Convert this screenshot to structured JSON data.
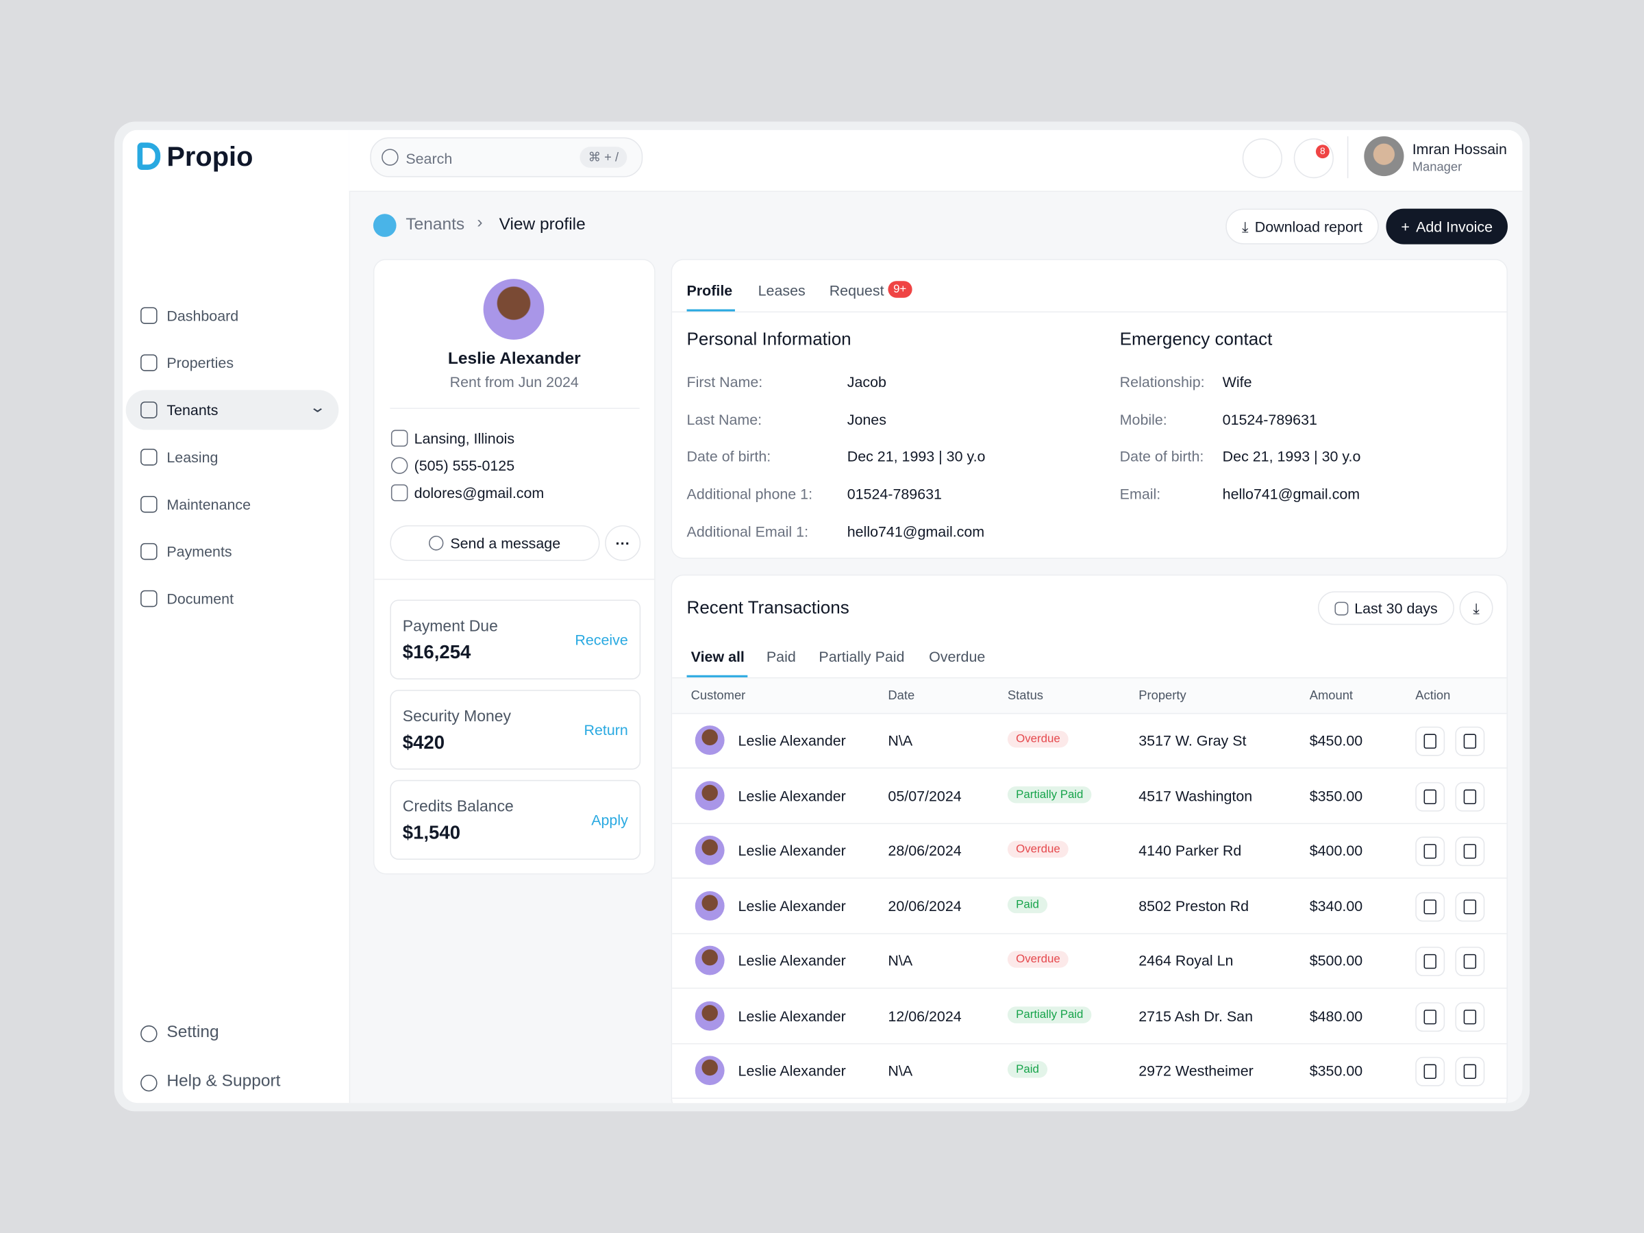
{
  "brand": "Propio",
  "search": {
    "placeholder": "Search",
    "shortcut": "⌘ + /"
  },
  "nav": [
    "Dashboard",
    "Properties",
    "Tenants",
    "Leasing",
    "Maintenance",
    "Payments",
    "Document"
  ],
  "nav_active": 2,
  "nav_footer": [
    "Setting",
    "Help & Support"
  ],
  "user": {
    "name": "Imran Hossain",
    "role": "Manager",
    "notifications": "8"
  },
  "breadcrumb": [
    "Tenants",
    "View profile"
  ],
  "actions": [
    "Download report",
    "Add Invoice"
  ],
  "profile": {
    "name": "Leslie Alexander",
    "since": "Rent from Jun 2024",
    "location": "Lansing, Illinois",
    "phone": "(505) 555-0125",
    "email": "dolores@gmail.com",
    "message": "Send a message"
  },
  "balances": [
    {
      "label": "Payment Due",
      "amount": "$16,254",
      "action": "Receive"
    },
    {
      "label": "Security Money",
      "amount": "$420",
      "action": "Return"
    },
    {
      "label": "Credits Balance",
      "amount": "$1,540",
      "action": "Apply"
    }
  ],
  "tabs": [
    "Profile",
    "Leases",
    "Request"
  ],
  "tab_badge": "9+",
  "personal": {
    "title": "Personal Information",
    "fields": [
      [
        "First Name:",
        "Jacob"
      ],
      [
        "Last Name:",
        "Jones"
      ],
      [
        "Date of birth:",
        "Dec 21, 1993 | 30 y.o"
      ],
      [
        "Additional phone 1:",
        "01524-789631"
      ],
      [
        "Additional Email 1:",
        "hello741@gmail.com"
      ]
    ]
  },
  "emergency": {
    "title": "Emergency contact",
    "fields": [
      [
        "Relationship:",
        "Wife"
      ],
      [
        "Mobile:",
        "01524-789631"
      ],
      [
        "Date of birth:",
        "Dec 21, 1993 | 30 y.o"
      ],
      [
        "Email:",
        "hello741@gmail.com"
      ]
    ]
  },
  "transactions": {
    "title": "Recent Transactions",
    "range": "Last 30 days",
    "filters": [
      "View all",
      "Paid",
      "Partially Paid",
      "Overdue"
    ],
    "columns": [
      "Customer",
      "Date",
      "Status",
      "Property",
      "Amount",
      "Action"
    ],
    "rows": [
      {
        "customer": "Leslie Alexander",
        "date": "N\\A",
        "status": "Overdue",
        "status_color": "#e5484d",
        "property": "3517 W. Gray St",
        "amount": "$450.00"
      },
      {
        "customer": "Leslie Alexander",
        "date": "05/07/2024",
        "status": "Partially Paid",
        "status_color": "#16a34a",
        "property": "4517 Washington",
        "amount": "$350.00"
      },
      {
        "customer": "Leslie Alexander",
        "date": "28/06/2024",
        "status": "Overdue",
        "status_color": "#e5484d",
        "property": "4140 Parker Rd",
        "amount": "$400.00"
      },
      {
        "customer": "Leslie Alexander",
        "date": "20/06/2024",
        "status": "Paid",
        "status_color": "#16a34a",
        "property": "8502 Preston Rd",
        "amount": "$340.00"
      },
      {
        "customer": "Leslie Alexander",
        "date": "N\\A",
        "status": "Overdue",
        "status_color": "#e5484d",
        "property": "2464 Royal Ln",
        "amount": "$500.00"
      },
      {
        "customer": "Leslie Alexander",
        "date": "12/06/2024",
        "status": "Partially Paid",
        "status_color": "#16a34a",
        "property": "2715 Ash Dr. San",
        "amount": "$480.00"
      },
      {
        "customer": "Leslie Alexander",
        "date": "N\\A",
        "status": "Paid",
        "status_color": "#16a34a",
        "property": "2972 Westheimer",
        "amount": "$350.00"
      }
    ]
  }
}
